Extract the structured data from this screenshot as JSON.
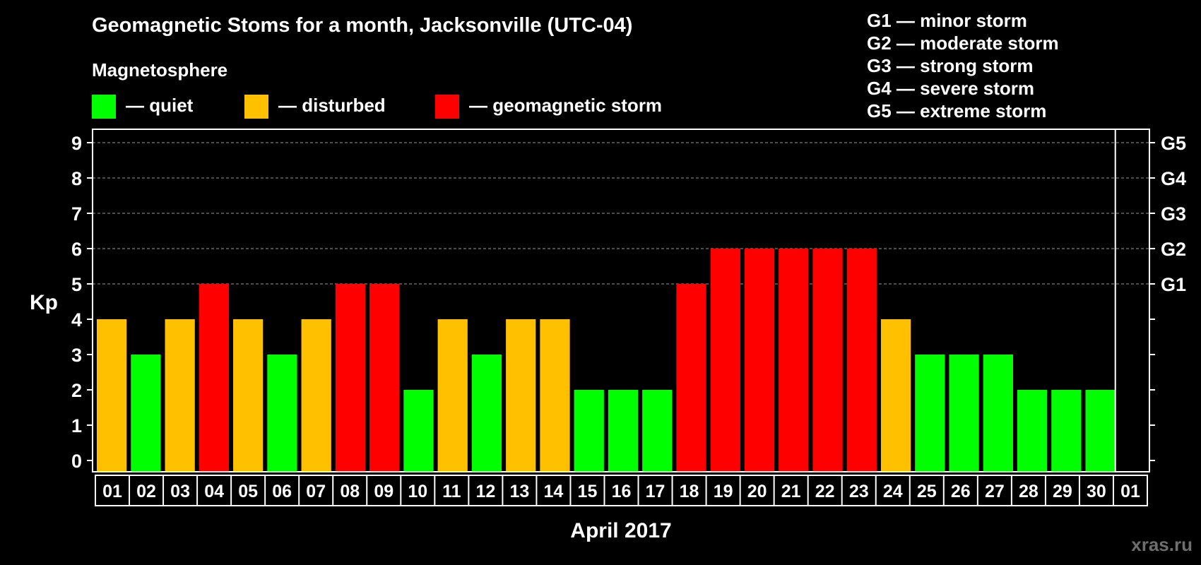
{
  "chart_data": {
    "type": "bar",
    "title": "Geomagnetic Stoms for a month, Jacksonville (UTC-04)",
    "xlabel": "April 2017",
    "ylabel": "Kp",
    "ylim": [
      0,
      9
    ],
    "yticks": [
      "0",
      "1",
      "2",
      "3",
      "4",
      "5",
      "6",
      "7",
      "8",
      "9"
    ],
    "right_ticks": [
      {
        "kp": 5,
        "label": "G1"
      },
      {
        "kp": 6,
        "label": "G2"
      },
      {
        "kp": 7,
        "label": "G3"
      },
      {
        "kp": 8,
        "label": "G4"
      },
      {
        "kp": 9,
        "label": "G5"
      }
    ],
    "categories": [
      "01",
      "02",
      "03",
      "04",
      "05",
      "06",
      "07",
      "08",
      "09",
      "10",
      "11",
      "12",
      "13",
      "14",
      "15",
      "16",
      "17",
      "18",
      "19",
      "20",
      "21",
      "22",
      "23",
      "24",
      "25",
      "26",
      "27",
      "28",
      "29",
      "30",
      "01"
    ],
    "values": [
      4,
      3,
      4,
      5,
      4,
      3,
      4,
      5,
      5,
      2,
      4,
      3,
      4,
      4,
      2,
      2,
      2,
      5,
      6,
      6,
      6,
      6,
      6,
      4,
      3,
      3,
      3,
      2,
      2,
      2,
      null
    ],
    "grid": true,
    "colors": {
      "quiet": "#00ff00",
      "disturbed": "#ffc000",
      "storm": "#ff0000"
    }
  },
  "legend": {
    "heading": "Magnetosphere",
    "items": [
      {
        "label": "— quiet",
        "color": "#00ff00"
      },
      {
        "label": "— disturbed",
        "color": "#ffc000"
      },
      {
        "label": "— geomagnetic storm",
        "color": "#ff0000"
      }
    ]
  },
  "g_scale": [
    "G1 — minor storm",
    "G2 — moderate storm",
    "G3 — strong storm",
    "G4 — severe storm",
    "G5 — extreme storm"
  ],
  "watermark": "xras.ru"
}
